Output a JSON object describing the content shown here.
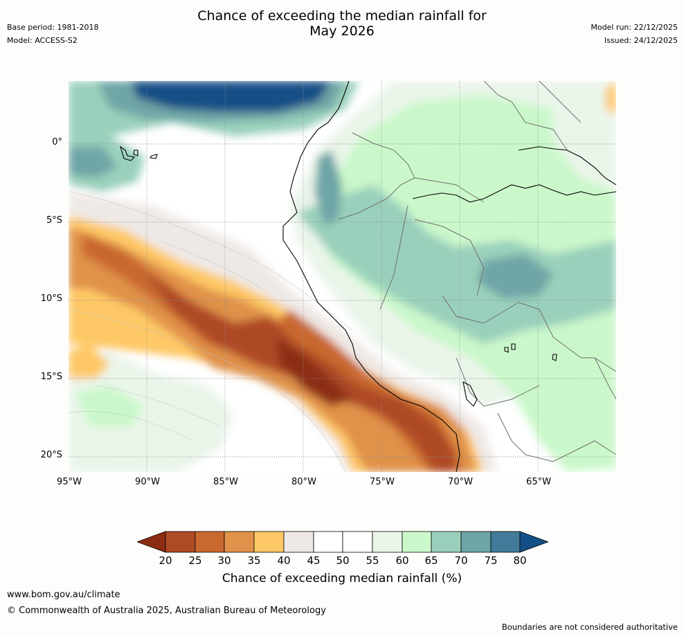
{
  "header": {
    "title_line1": "Chance of exceeding the median rainfall for",
    "title_line2": "May 2026",
    "base_period": "Base period: 1981-2018",
    "model": "Model: ACCESS-S2",
    "model_run": "Model run: 22/12/2025",
    "issued": "Issued: 24/12/2025"
  },
  "map": {
    "lat_labels": [
      "0°",
      "5°S",
      "10°S",
      "15°S",
      "20°S"
    ],
    "lon_labels": [
      "95°W",
      "90°W",
      "85°W",
      "80°W",
      "75°W",
      "70°W",
      "65°W"
    ]
  },
  "colorbar": {
    "title": "Chance of exceeding median rainfall (%)",
    "ticks": [
      "20",
      "25",
      "30",
      "35",
      "40",
      "45",
      "50",
      "55",
      "60",
      "65",
      "70",
      "75",
      "80"
    ],
    "colors": [
      "#8c2d13",
      "#ae4a25",
      "#c9682f",
      "#e0924a",
      "#fec866",
      "#efe9e6",
      "#ffffff",
      "#ffffff",
      "#eaf5ea",
      "#cbf8cb",
      "#9ad0bb",
      "#6ea5a6",
      "#427b99",
      "#134f86"
    ]
  },
  "footer": {
    "url": "www.bom.gov.au/climate",
    "copyright": "© Commonwealth of Australia 2025, Australian Bureau of Meteorology",
    "disclaimer": "Boundaries are not considered authoritative"
  }
}
